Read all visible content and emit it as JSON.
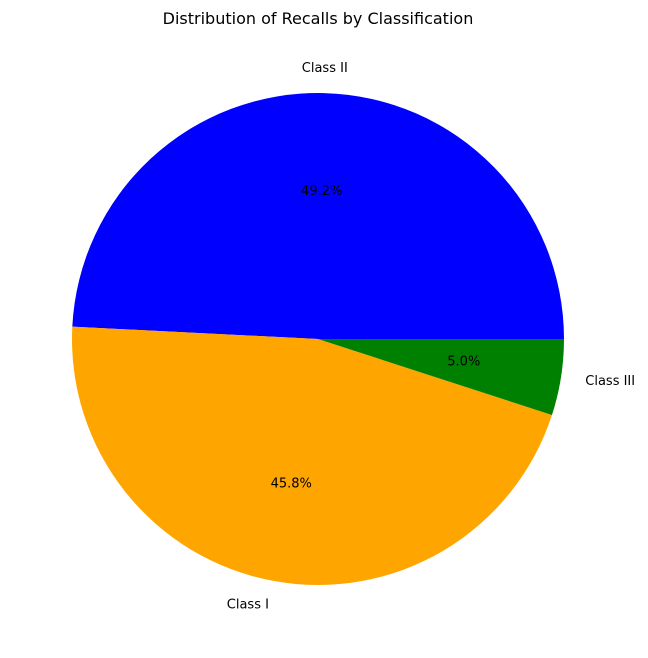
{
  "chart_data": {
    "type": "pie",
    "title": "Distribution of Recalls by Classification",
    "slices": [
      {
        "label": "Class II",
        "value": 49.2,
        "pct_label": "49.2%",
        "color": "#0000ff"
      },
      {
        "label": "Class I",
        "value": 45.8,
        "pct_label": "45.8%",
        "color": "#ffa500"
      },
      {
        "label": "Class III",
        "value": 5.0,
        "pct_label": "5.0%",
        "color": "#008000"
      }
    ],
    "start_angle_deg": 0,
    "direction": "counterclockwise",
    "legend": "none"
  }
}
